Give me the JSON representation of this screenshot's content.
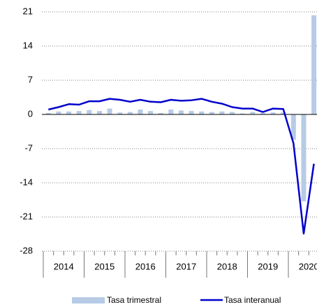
{
  "chart_data": {
    "type": "bar_line",
    "year_labels": [
      "2014",
      "2015",
      "2016",
      "2017",
      "2018",
      "2019",
      "2020"
    ],
    "series": [
      {
        "name": "Tasa trimestral",
        "type": "bar",
        "color": "#b7cbe6",
        "values": [
          0.3,
          0.6,
          0.6,
          0.7,
          0.9,
          0.7,
          1.2,
          0.4,
          0.5,
          1.0,
          0.7,
          0.3,
          1.0,
          0.8,
          0.7,
          0.6,
          0.5,
          0.6,
          0.5,
          0.2,
          0.5,
          0.3,
          0.4,
          0.4,
          -5.2,
          -17.8,
          20.3
        ]
      },
      {
        "name": "Tasa interanual",
        "type": "line",
        "color": "#0000cc",
        "values": [
          1.0,
          1.5,
          2.1,
          2.0,
          2.7,
          2.7,
          3.2,
          3.0,
          2.6,
          3.0,
          2.6,
          2.5,
          3.0,
          2.8,
          2.9,
          3.2,
          2.6,
          2.2,
          1.5,
          1.2,
          1.2,
          0.5,
          1.2,
          1.1,
          -5.9,
          -24.4,
          -10.1
        ]
      }
    ],
    "ylim": [
      -28,
      21
    ],
    "yticks": [
      -28,
      -21,
      -14,
      -7,
      0,
      7,
      14,
      21
    ],
    "grid": true,
    "legend": "bottom"
  }
}
